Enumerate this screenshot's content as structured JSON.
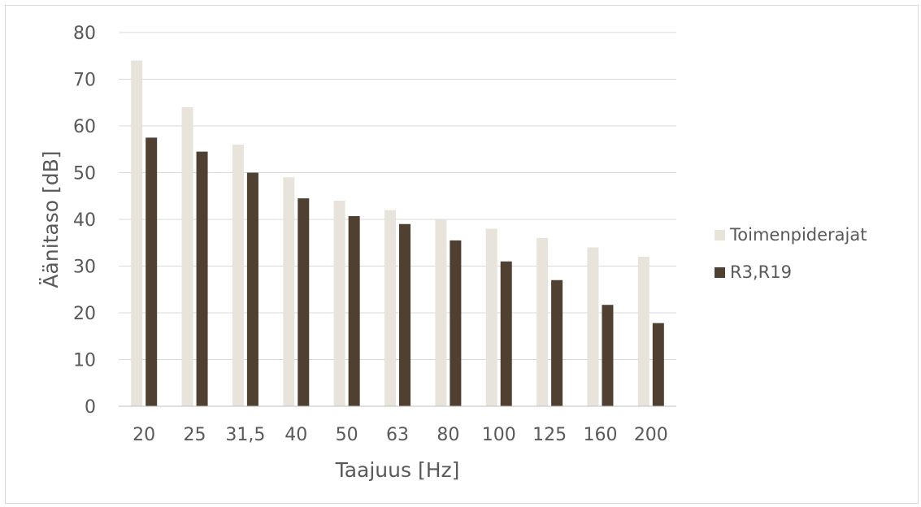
{
  "chart_data": {
    "type": "bar",
    "title": "",
    "xlabel": "Taajuus [Hz]",
    "ylabel": "Äänitaso [dB]",
    "ylim": [
      0,
      80
    ],
    "yticks": [
      "0",
      "10",
      "20",
      "30",
      "40",
      "50",
      "60",
      "70",
      "80"
    ],
    "grid": true,
    "legend_position": "right",
    "categories": [
      "20",
      "25",
      "31,5",
      "40",
      "50",
      "63",
      "80",
      "100",
      "125",
      "160",
      "200"
    ],
    "series": [
      {
        "name": "Toimenpiderajat",
        "color": "#e8e4dc",
        "values": [
          74,
          64,
          56,
          49,
          44,
          42,
          40,
          38,
          36,
          34,
          32
        ]
      },
      {
        "name": "R3,R19",
        "color": "#4f4031",
        "values": [
          57.5,
          54.5,
          50,
          44.5,
          40.7,
          39,
          35.5,
          31,
          27,
          21.7,
          17.8
        ]
      }
    ]
  }
}
